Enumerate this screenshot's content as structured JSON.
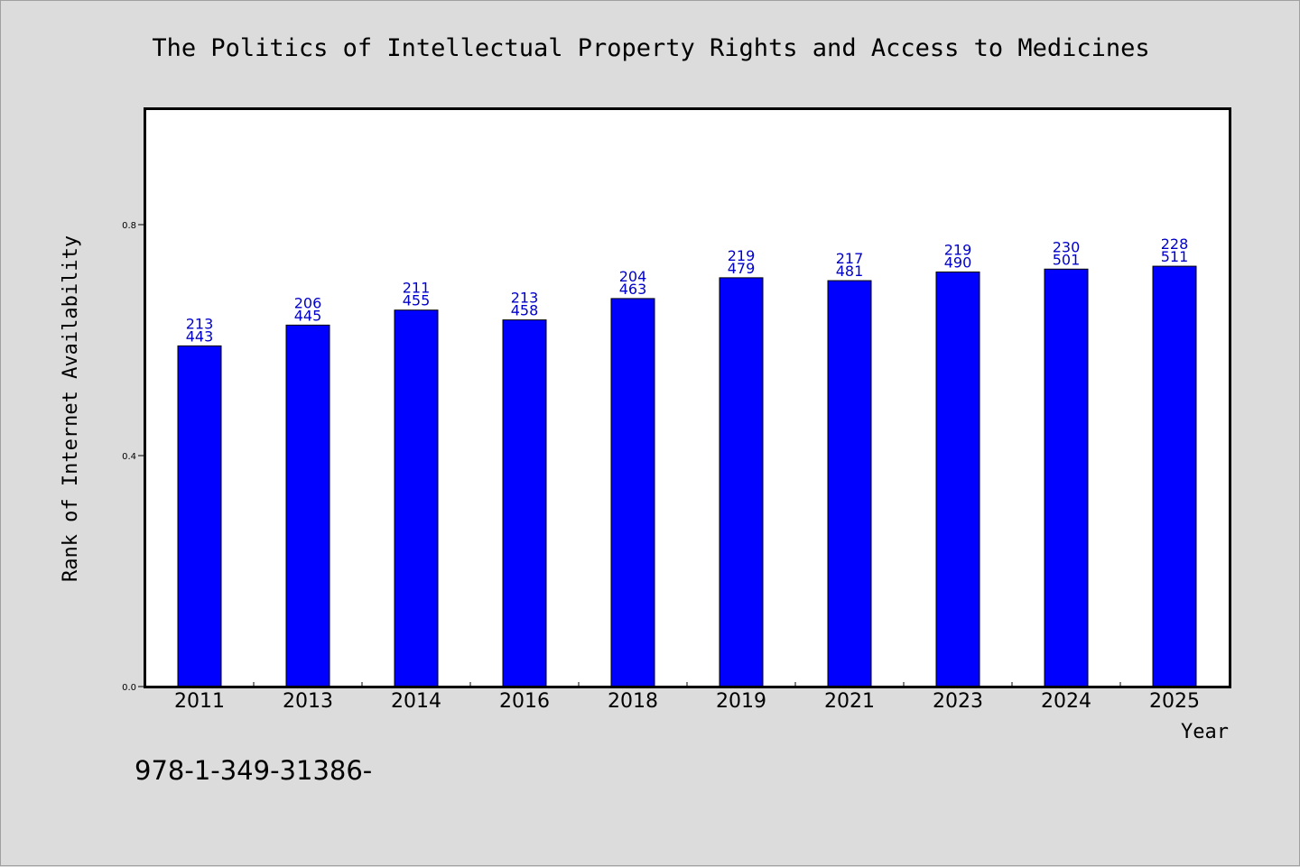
{
  "chart_data": {
    "type": "bar",
    "title": "The Politics of Intellectual Property Rights and Access to Medicines",
    "xlabel": "Year",
    "ylabel": "Rank of Internet Availability",
    "categories": [
      "2011",
      "2013",
      "2014",
      "2016",
      "2018",
      "2019",
      "2021",
      "2023",
      "2024",
      "2025"
    ],
    "values": [
      0.59,
      0.626,
      0.652,
      0.635,
      0.672,
      0.708,
      0.703,
      0.718,
      0.723,
      0.728
    ],
    "label_top": [
      "213",
      "206",
      "211",
      "213",
      "204",
      "219",
      "217",
      "219",
      "230",
      "228"
    ],
    "label_bottom": [
      "443",
      "445",
      "455",
      "458",
      "463",
      "479",
      "481",
      "490",
      "501",
      "511"
    ],
    "ylim": [
      0,
      1.0
    ],
    "yticks": [
      0.0,
      0.4,
      0.8
    ],
    "ytick_labels": [
      "0.0",
      "0.4",
      "0.8"
    ],
    "bar_color": "#0000ff",
    "label_color": "#0000cc",
    "grid": false
  },
  "footnote": "978-1-349-31386-"
}
